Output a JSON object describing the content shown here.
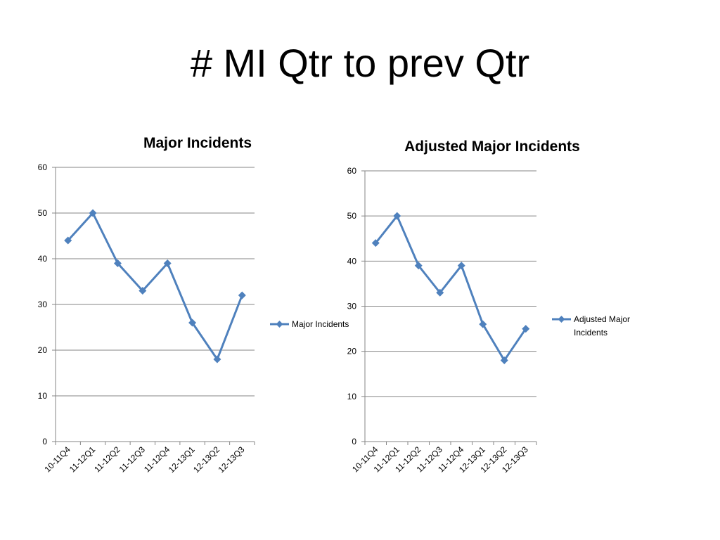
{
  "slide": {
    "title": "# MI Qtr to prev Qtr"
  },
  "colors": {
    "series": "#4F81BD",
    "grid": "#868686",
    "axis": "#868686"
  },
  "chart_data": [
    {
      "type": "line",
      "title": "Major Incidents",
      "categories": [
        "10-11Q4",
        "11-12Q1",
        "11-12Q2",
        "11-12Q3",
        "11-12Q4",
        "12-13Q1",
        "12-13Q2",
        "12-13Q3"
      ],
      "series": [
        {
          "name": "Major Incidents",
          "values": [
            44,
            50,
            39,
            33,
            39,
            26,
            18,
            32
          ]
        }
      ],
      "ylim": [
        0,
        60
      ],
      "yticks": [
        0,
        10,
        20,
        30,
        40,
        50,
        60
      ],
      "xlabel": "",
      "ylabel": "",
      "grid": true,
      "legend": "right",
      "marker": "diamond"
    },
    {
      "type": "line",
      "title": "Adjusted Major Incidents",
      "categories": [
        "10-11Q4",
        "11-12Q1",
        "11-12Q2",
        "11-12Q3",
        "11-12Q4",
        "12-13Q1",
        "12-13Q2",
        "12-13Q3"
      ],
      "series": [
        {
          "name": "Adjusted Major Incidents",
          "values": [
            44,
            50,
            39,
            33,
            39,
            26,
            18,
            25
          ]
        }
      ],
      "ylim": [
        0,
        60
      ],
      "yticks": [
        0,
        10,
        20,
        30,
        40,
        50,
        60
      ],
      "xlabel": "",
      "ylabel": "",
      "grid": true,
      "legend": "right",
      "marker": "diamond"
    }
  ]
}
